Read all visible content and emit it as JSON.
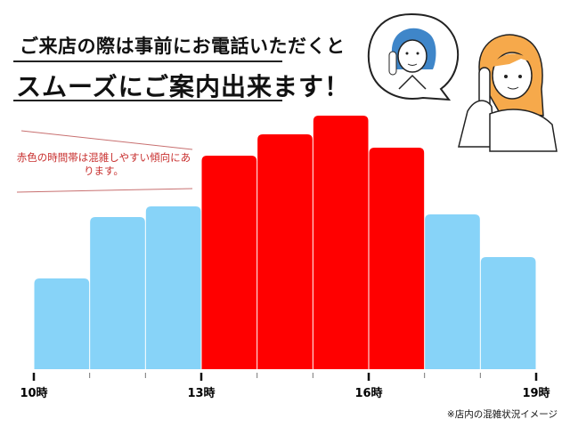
{
  "header": {
    "line1": "ご来店の際は事前にお電話いただくと",
    "line2": "スムーズにご案内出来ます！"
  },
  "annotation": "赤色の時間帯は混雑しやすい傾向にあります。",
  "caption": "※店内の混雑状況イメージ",
  "illustration": {
    "icons": [
      "staff-on-phone-icon",
      "customer-on-phone-icon",
      "speech-bubble-icon"
    ]
  },
  "colors": {
    "busy": "#ff0000",
    "normal": "#87d3f8",
    "annotation": "#c8302f",
    "staff_hair": "#3f86c9",
    "customer_hair": "#f6a94b"
  },
  "chart_data": {
    "type": "bar",
    "title": "",
    "xlabel": "",
    "ylabel": "",
    "y_axis_shown": false,
    "grid": false,
    "ylim": [
      0,
      100
    ],
    "tick_labels": [
      "10時",
      "13時",
      "16時",
      "19時"
    ],
    "bins": [
      "10-11",
      "11-12",
      "12-13",
      "13-14",
      "14-15",
      "15-16",
      "16-17",
      "17-18",
      "18-19"
    ],
    "values": [
      34,
      57,
      61,
      80,
      88,
      95,
      83,
      58,
      42
    ],
    "busy": [
      false,
      false,
      false,
      true,
      true,
      true,
      true,
      false,
      false
    ]
  }
}
